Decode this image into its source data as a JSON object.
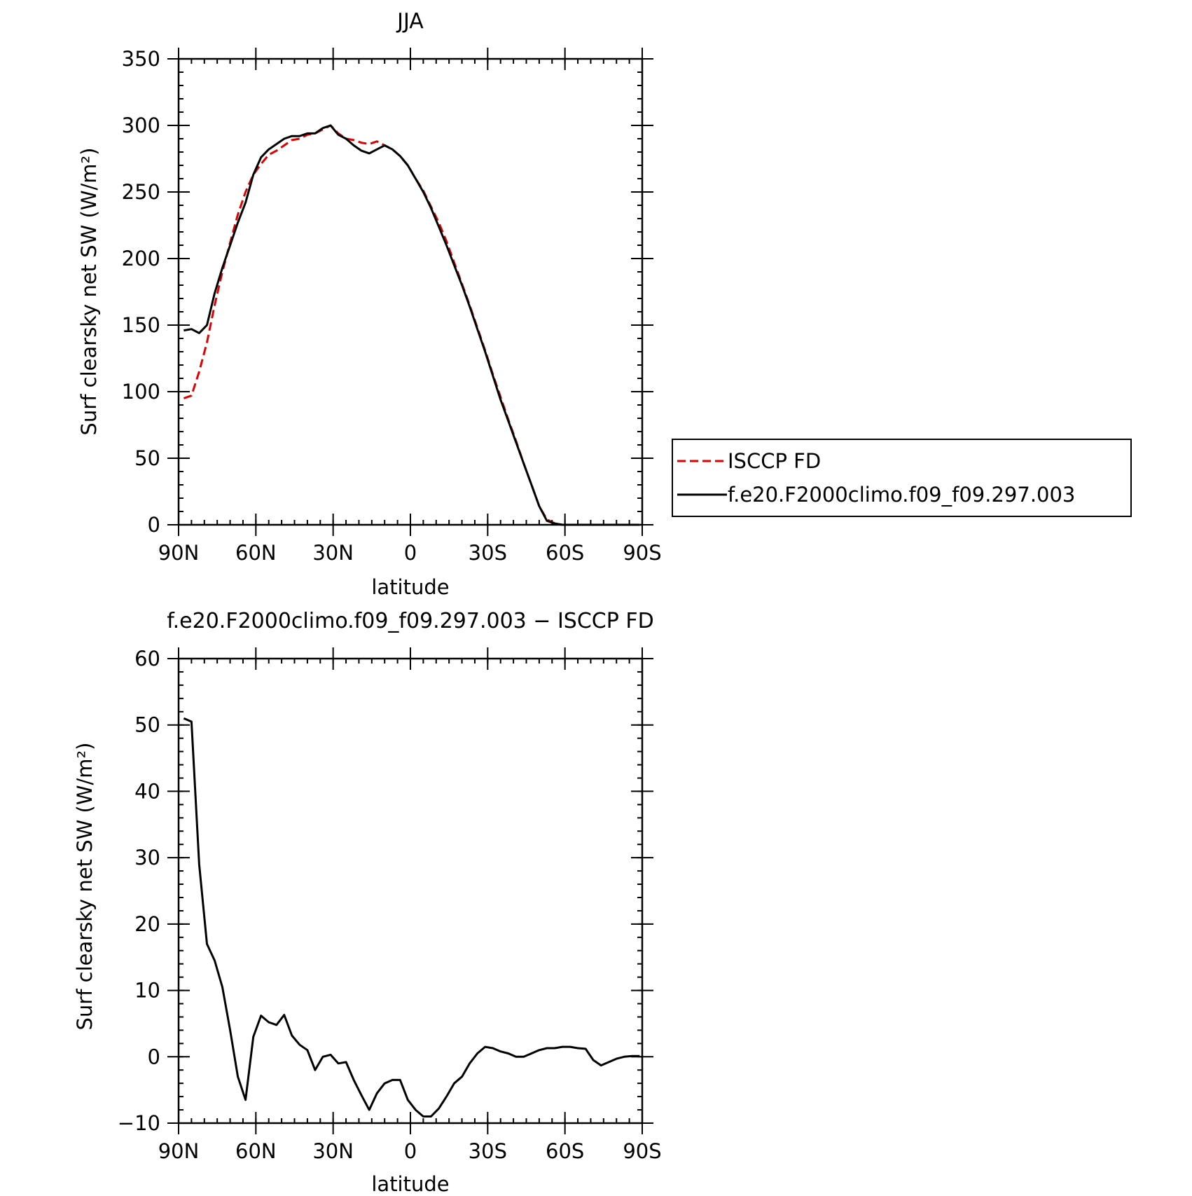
{
  "colors": {
    "obs": "#e00000",
    "model": "#000000"
  },
  "chart_data": [
    {
      "type": "line",
      "title": "JJA",
      "xlabel": "latitude",
      "ylabel": "Surf clearsky net SW (W/m²)",
      "xlim": [
        90,
        -90
      ],
      "ylim": [
        0,
        350
      ],
      "xticks": [
        90,
        60,
        30,
        0,
        -30,
        -60,
        -90
      ],
      "xtick_labels": [
        "90N",
        "60N",
        "30N",
        "0",
        "30S",
        "60S",
        "90S"
      ],
      "yticks": [
        0,
        50,
        100,
        150,
        200,
        250,
        300,
        350
      ],
      "ytick_labels": [
        "0",
        "50",
        "100",
        "150",
        "200",
        "250",
        "300",
        "350"
      ],
      "legend": {
        "placement": "right",
        "entries": [
          "ISCCP FD",
          "f.e20.F2000climo.f09_f09.297.003"
        ]
      },
      "series": [
        {
          "name": "ISCCP FD",
          "style": "dashed",
          "color": "#e00000",
          "x": [
            88,
            85,
            82,
            79,
            76,
            73,
            70,
            67,
            64,
            61,
            58,
            55,
            52,
            49,
            46,
            43,
            40,
            37,
            34,
            31,
            28,
            25,
            22,
            19,
            16,
            13,
            10,
            7,
            4,
            1,
            -2,
            -5,
            -8,
            -11,
            -14,
            -17,
            -20,
            -23,
            -26,
            -29,
            -32,
            -35,
            -38,
            -41,
            -44,
            -47,
            -50,
            -53,
            -56,
            -59,
            -62,
            -65,
            -68,
            -71,
            -74,
            -77,
            -80,
            -83,
            -86,
            -89
          ],
          "y": [
            95,
            97,
            115,
            137,
            165,
            190,
            212,
            233,
            250,
            263,
            271,
            278,
            281,
            285,
            289,
            290,
            293,
            294,
            297,
            300,
            294,
            290,
            289,
            287,
            286,
            288,
            285,
            282,
            277,
            270,
            260,
            251,
            239,
            227,
            213,
            197,
            181,
            165,
            148,
            131,
            113,
            96,
            79,
            63,
            46,
            30,
            14,
            4,
            1,
            0,
            0,
            0,
            0,
            0,
            0,
            0,
            0,
            0,
            0,
            0
          ]
        },
        {
          "name": "f.e20.F2000climo.f09_f09.297.003",
          "style": "solid",
          "color": "#000000",
          "x": [
            88,
            85,
            82,
            79,
            76,
            73,
            70,
            67,
            64,
            61,
            58,
            55,
            52,
            49,
            46,
            43,
            40,
            37,
            34,
            31,
            28,
            25,
            22,
            19,
            16,
            13,
            10,
            7,
            4,
            1,
            -2,
            -5,
            -8,
            -11,
            -14,
            -17,
            -20,
            -23,
            -26,
            -29,
            -32,
            -35,
            -38,
            -41,
            -44,
            -47,
            -50,
            -53,
            -56,
            -59,
            -62,
            -65,
            -68,
            -71,
            -74,
            -77,
            -80,
            -83,
            -86,
            -89
          ],
          "y": [
            146,
            147,
            144,
            150,
            174,
            193,
            210,
            227,
            242,
            263,
            276,
            282,
            286,
            290,
            292,
            292,
            294,
            294,
            298,
            300,
            293,
            290,
            285,
            281,
            279,
            282,
            285,
            282,
            277,
            270,
            260,
            250,
            238,
            224,
            210,
            195,
            180,
            164,
            147,
            130,
            112,
            94,
            78,
            62,
            46,
            30,
            14,
            3,
            1,
            0,
            0,
            0,
            0,
            0,
            0,
            0,
            0,
            0,
            0,
            0
          ]
        }
      ]
    },
    {
      "type": "line",
      "title": "f.e20.F2000climo.f09_f09.297.003 − ISCCP FD",
      "xlabel": "latitude",
      "ylabel": "Surf clearsky net SW (W/m²)",
      "xlim": [
        90,
        -90
      ],
      "ylim": [
        -10,
        60
      ],
      "xticks": [
        90,
        60,
        30,
        0,
        -30,
        -60,
        -90
      ],
      "xtick_labels": [
        "90N",
        "60N",
        "30N",
        "0",
        "30S",
        "60S",
        "90S"
      ],
      "yticks": [
        -10,
        0,
        10,
        20,
        30,
        40,
        50,
        60
      ],
      "ytick_labels": [
        "−10",
        "0",
        "10",
        "20",
        "30",
        "40",
        "50",
        "60"
      ],
      "series": [
        {
          "style": "solid",
          "color": "#000000",
          "x": [
            88,
            85,
            82,
            79,
            76,
            73,
            70,
            67,
            64,
            61,
            58,
            55,
            52,
            49,
            46,
            43,
            40,
            37,
            34,
            31,
            28,
            25,
            22,
            19,
            16,
            13,
            10,
            7,
            4,
            1,
            -2,
            -5,
            -8,
            -11,
            -14,
            -17,
            -20,
            -23,
            -26,
            -29,
            -32,
            -35,
            -38,
            -41,
            -44,
            -47,
            -50,
            -53,
            -56,
            -59,
            -62,
            -65,
            -68,
            -71,
            -74,
            -77,
            -80,
            -83,
            -86,
            -89
          ],
          "y": [
            51,
            50.5,
            29,
            17,
            14.5,
            10.5,
            4,
            -3,
            -6.5,
            3,
            6.2,
            5.2,
            4.8,
            6.3,
            3.2,
            1.8,
            1,
            -2,
            0,
            0.3,
            -1,
            -0.8,
            -3.5,
            -5.8,
            -8,
            -5.5,
            -4,
            -3.5,
            -3.5,
            -6.5,
            -8,
            -9,
            -9,
            -7.8,
            -6,
            -4,
            -3,
            -1,
            0.5,
            1.5,
            1.3,
            0.8,
            0.5,
            0,
            0,
            0.5,
            1,
            1.3,
            1.3,
            1.5,
            1.5,
            1.3,
            1.2,
            -0.5,
            -1.3,
            -0.8,
            -0.3,
            0,
            0.1,
            0.1
          ]
        }
      ]
    }
  ]
}
